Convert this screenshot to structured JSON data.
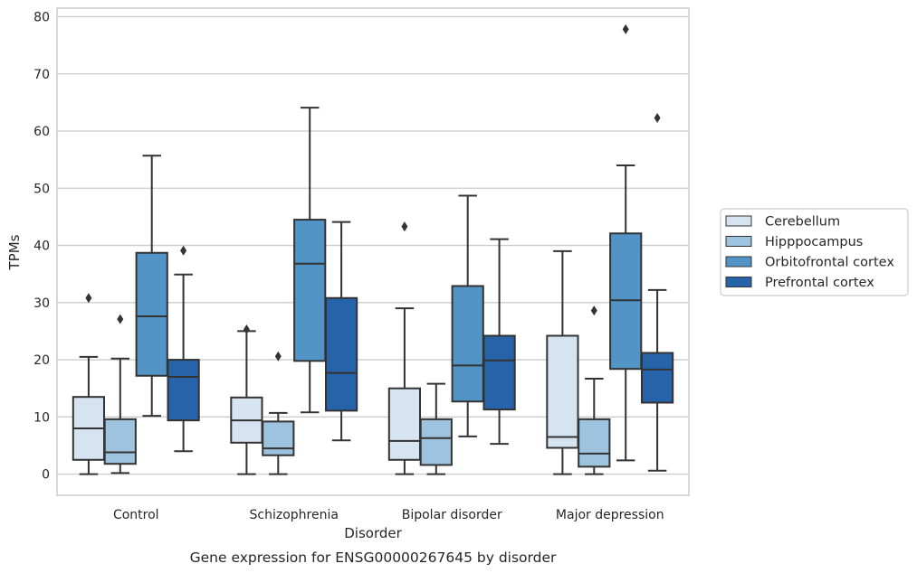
{
  "chart_data": {
    "type": "box",
    "title": "",
    "caption": "Gene expression for ENSG00000267645 by disorder",
    "xlabel": "Disorder",
    "ylabel": "TPMs",
    "ylim": [
      -3.7,
      81.5
    ],
    "yticks": [
      0,
      10,
      20,
      30,
      40,
      50,
      60,
      70,
      80
    ],
    "grid": "horizontal",
    "legend_position": "right",
    "categories": [
      "Control",
      "Schizophrenia",
      "Bipolar disorder",
      "Major depression"
    ],
    "series": [
      {
        "name": "Cerebellum",
        "color": "#d6e3f1",
        "boxes": [
          {
            "whisker_low": 0,
            "q1": 2.5,
            "median": 8,
            "q3": 13.5,
            "whisker_high": 20.5,
            "outliers": [
              30.8
            ]
          },
          {
            "whisker_low": 0,
            "q1": 5.5,
            "median": 9.4,
            "q3": 13.4,
            "whisker_high": 25,
            "outliers": [
              25.3
            ]
          },
          {
            "whisker_low": 0,
            "q1": 2.5,
            "median": 5.8,
            "q3": 15,
            "whisker_high": 29,
            "outliers": [
              43.3
            ]
          },
          {
            "whisker_low": 0,
            "q1": 4.6,
            "median": 6.5,
            "q3": 24.2,
            "whisker_high": 39,
            "outliers": []
          }
        ]
      },
      {
        "name": "Hipppocampus",
        "color": "#9dc3de",
        "boxes": [
          {
            "whisker_low": 0.2,
            "q1": 1.8,
            "median": 3.8,
            "q3": 9.6,
            "whisker_high": 20.2,
            "outliers": [
              27.1
            ]
          },
          {
            "whisker_low": 0,
            "q1": 3.3,
            "median": 4.5,
            "q3": 9.2,
            "whisker_high": 10.7,
            "outliers": [
              20.6
            ]
          },
          {
            "whisker_low": 0,
            "q1": 1.6,
            "median": 6.3,
            "q3": 9.6,
            "whisker_high": 15.8,
            "outliers": []
          },
          {
            "whisker_low": 0,
            "q1": 1.3,
            "median": 3.6,
            "q3": 9.6,
            "whisker_high": 16.7,
            "outliers": [
              28.6
            ]
          }
        ]
      },
      {
        "name": "Orbitofrontal cortex",
        "color": "#5294c6",
        "boxes": [
          {
            "whisker_low": 10.2,
            "q1": 17.2,
            "median": 27.6,
            "q3": 38.7,
            "whisker_high": 55.7,
            "outliers": []
          },
          {
            "whisker_low": 10.8,
            "q1": 19.8,
            "median": 36.8,
            "q3": 44.5,
            "whisker_high": 64.1,
            "outliers": []
          },
          {
            "whisker_low": 6.6,
            "q1": 12.7,
            "median": 19,
            "q3": 32.9,
            "whisker_high": 48.7,
            "outliers": []
          },
          {
            "whisker_low": 2.4,
            "q1": 18.4,
            "median": 30.4,
            "q3": 42.1,
            "whisker_high": 54,
            "outliers": [
              77.8
            ]
          }
        ]
      },
      {
        "name": "Prefrontal cortex",
        "color": "#2663a8",
        "boxes": [
          {
            "whisker_low": 4,
            "q1": 9.4,
            "median": 17,
            "q3": 20,
            "whisker_high": 34.9,
            "outliers": [
              39.1
            ]
          },
          {
            "whisker_low": 5.9,
            "q1": 11.1,
            "median": 17.7,
            "q3": 30.8,
            "whisker_high": 44.1,
            "outliers": []
          },
          {
            "whisker_low": 5.3,
            "q1": 11.3,
            "median": 19.9,
            "q3": 24.2,
            "whisker_high": 41.1,
            "outliers": []
          },
          {
            "whisker_low": 0.6,
            "q1": 12.5,
            "median": 18.3,
            "q3": 21.2,
            "whisker_high": 32.2,
            "outliers": [
              62.3
            ]
          }
        ]
      }
    ]
  }
}
